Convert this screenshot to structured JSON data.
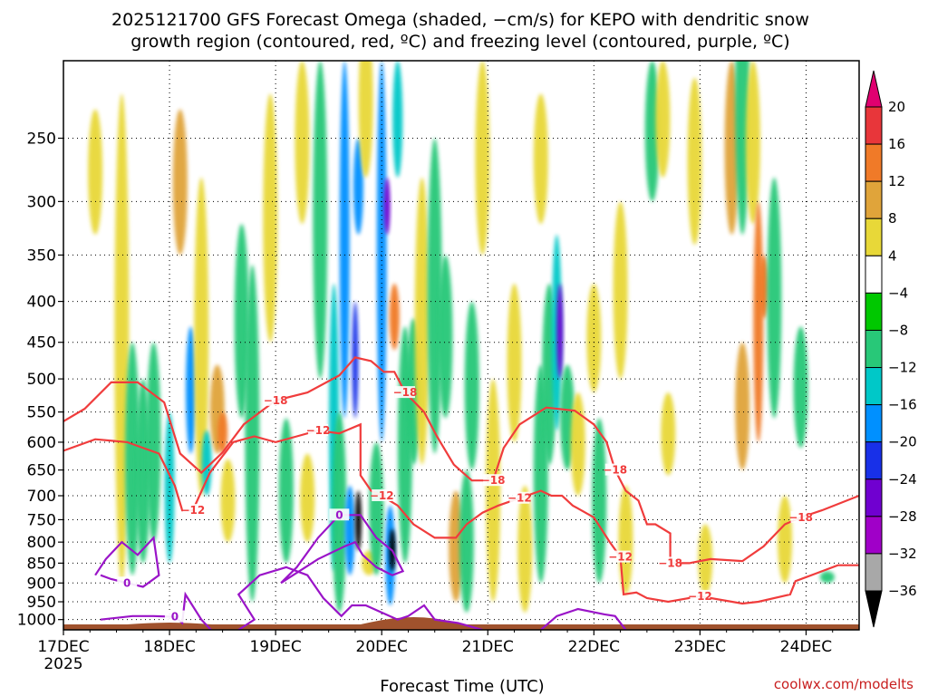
{
  "chart_data": {
    "type": "heatmap",
    "title_line1": "2025121700 GFS Forecast Omega (shaded, −cm/s) for KEPO with dendritic snow",
    "title_line2": "growth region (contoured, red, ºC) and freezing level (contoured, purple, ºC)",
    "xlabel": "Forecast Time (UTC)",
    "ylabel": "",
    "credit": "coolwx.com/modelts",
    "x_ticks": [
      "17DEC",
      "18DEC",
      "19DEC",
      "20DEC",
      "21DEC",
      "22DEC",
      "23DEC",
      "24DEC"
    ],
    "x_year": "2025",
    "x_range_days": [
      0,
      7.5
    ],
    "y_ticks": [
      250,
      300,
      350,
      400,
      450,
      500,
      550,
      600,
      650,
      700,
      750,
      800,
      850,
      900,
      950,
      1000
    ],
    "y_range_hpa": [
      1030,
      200
    ],
    "colorbar": {
      "labels": [
        20,
        16,
        12,
        8,
        4,
        -4,
        -8,
        -12,
        -16,
        -20,
        -24,
        -28,
        -32,
        -36
      ],
      "colors": [
        "#e00070",
        "#e8363a",
        "#f07a28",
        "#e0a43a",
        "#e8d838",
        "#ffffff",
        "#00c800",
        "#28c878",
        "#00c8c8",
        "#0090ff",
        "#1830e8",
        "#7000d0",
        "#a000c8",
        "#a8a8a8",
        "#000000"
      ]
    },
    "omega_features": [
      {
        "day": 0.3,
        "p_top": 230,
        "p_bot": 330,
        "value": 6
      },
      {
        "day": 0.55,
        "p_top": 220,
        "p_bot": 900,
        "value": 5
      },
      {
        "day": 0.65,
        "p_top": 450,
        "p_bot": 880,
        "value": -9
      },
      {
        "day": 0.75,
        "p_top": 500,
        "p_bot": 850,
        "value": -11
      },
      {
        "day": 0.85,
        "p_top": 450,
        "p_bot": 800,
        "value": -10
      },
      {
        "day": 1.0,
        "p_top": 550,
        "p_bot": 850,
        "value": -13
      },
      {
        "day": 1.1,
        "p_top": 230,
        "p_bot": 350,
        "value": 10
      },
      {
        "day": 1.2,
        "p_top": 430,
        "p_bot": 620,
        "value": -17
      },
      {
        "day": 1.3,
        "p_top": 280,
        "p_bot": 700,
        "value": 6
      },
      {
        "day": 1.35,
        "p_top": 580,
        "p_bot": 700,
        "value": -13
      },
      {
        "day": 1.45,
        "p_top": 480,
        "p_bot": 620,
        "value": 9
      },
      {
        "day": 1.5,
        "p_top": 550,
        "p_bot": 620,
        "value": 13
      },
      {
        "day": 1.55,
        "p_top": 630,
        "p_bot": 800,
        "value": 7
      },
      {
        "day": 1.68,
        "p_top": 320,
        "p_bot": 560,
        "value": -8
      },
      {
        "day": 1.78,
        "p_top": 360,
        "p_bot": 950,
        "value": -10
      },
      {
        "day": 1.95,
        "p_top": 220,
        "p_bot": 450,
        "value": 7
      },
      {
        "day": 2.1,
        "p_top": 560,
        "p_bot": 850,
        "value": -10
      },
      {
        "day": 2.25,
        "p_top": 200,
        "p_bot": 320,
        "value": 6
      },
      {
        "day": 2.3,
        "p_top": 620,
        "p_bot": 800,
        "value": 5
      },
      {
        "day": 2.42,
        "p_top": 200,
        "p_bot": 500,
        "value": -9
      },
      {
        "day": 2.55,
        "p_top": 380,
        "p_bot": 870,
        "value": -12
      },
      {
        "day": 2.6,
        "p_top": 550,
        "p_bot": 980,
        "value": -9
      },
      {
        "day": 2.65,
        "p_top": 200,
        "p_bot": 560,
        "value": -16
      },
      {
        "day": 2.7,
        "p_top": 680,
        "p_bot": 880,
        "value": -19
      },
      {
        "day": 2.75,
        "p_top": 400,
        "p_bot": 560,
        "value": -22
      },
      {
        "day": 2.78,
        "p_top": 250,
        "p_bot": 330,
        "value": -18
      },
      {
        "day": 2.78,
        "p_top": 690,
        "p_bot": 820,
        "value": -37
      },
      {
        "day": 2.85,
        "p_top": 180,
        "p_bot": 280,
        "value": 6
      },
      {
        "day": 2.88,
        "p_top": 820,
        "p_bot": 880,
        "value": 7
      },
      {
        "day": 2.95,
        "p_top": 600,
        "p_bot": 880,
        "value": -10
      },
      {
        "day": 3.0,
        "p_top": 200,
        "p_bot": 600,
        "value": -17
      },
      {
        "day": 3.05,
        "p_top": 280,
        "p_bot": 330,
        "value": -26
      },
      {
        "day": 3.08,
        "p_top": 720,
        "p_bot": 960,
        "value": -17
      },
      {
        "day": 3.1,
        "p_top": 770,
        "p_bot": 870,
        "value": -37
      },
      {
        "day": 3.12,
        "p_top": 380,
        "p_bot": 460,
        "value": 13
      },
      {
        "day": 3.15,
        "p_top": 200,
        "p_bot": 280,
        "value": -14
      },
      {
        "day": 3.22,
        "p_top": 430,
        "p_bot": 850,
        "value": -10
      },
      {
        "day": 3.3,
        "p_top": 420,
        "p_bot": 640,
        "value": -8
      },
      {
        "day": 3.38,
        "p_top": 280,
        "p_bot": 640,
        "value": 6
      },
      {
        "day": 3.5,
        "p_top": 250,
        "p_bot": 620,
        "value": -10
      },
      {
        "day": 3.6,
        "p_top": 350,
        "p_bot": 560,
        "value": -9
      },
      {
        "day": 3.7,
        "p_top": 690,
        "p_bot": 950,
        "value": 8
      },
      {
        "day": 3.8,
        "p_top": 650,
        "p_bot": 980,
        "value": -9
      },
      {
        "day": 3.85,
        "p_top": 400,
        "p_bot": 650,
        "value": -8
      },
      {
        "day": 3.95,
        "p_top": 200,
        "p_bot": 350,
        "value": 6
      },
      {
        "day": 4.05,
        "p_top": 500,
        "p_bot": 950,
        "value": 6
      },
      {
        "day": 4.25,
        "p_top": 380,
        "p_bot": 600,
        "value": 6
      },
      {
        "day": 4.35,
        "p_top": 680,
        "p_bot": 980,
        "value": 6
      },
      {
        "day": 4.5,
        "p_top": 220,
        "p_bot": 320,
        "value": 6
      },
      {
        "day": 4.5,
        "p_top": 480,
        "p_bot": 900,
        "value": -9
      },
      {
        "day": 4.58,
        "p_top": 380,
        "p_bot": 640,
        "value": -10
      },
      {
        "day": 4.65,
        "p_top": 330,
        "p_bot": 580,
        "value": -14
      },
      {
        "day": 4.68,
        "p_top": 380,
        "p_bot": 500,
        "value": -24
      },
      {
        "day": 4.75,
        "p_top": 480,
        "p_bot": 650,
        "value": -9
      },
      {
        "day": 4.85,
        "p_top": 520,
        "p_bot": 700,
        "value": 5
      },
      {
        "day": 5.0,
        "p_top": 380,
        "p_bot": 520,
        "value": 6
      },
      {
        "day": 5.05,
        "p_top": 560,
        "p_bot": 900,
        "value": -8
      },
      {
        "day": 5.25,
        "p_top": 300,
        "p_bot": 500,
        "value": 5
      },
      {
        "day": 5.3,
        "p_top": 680,
        "p_bot": 930,
        "value": 6
      },
      {
        "day": 5.55,
        "p_top": 200,
        "p_bot": 300,
        "value": -8
      },
      {
        "day": 5.65,
        "p_top": 200,
        "p_bot": 280,
        "value": 6
      },
      {
        "day": 5.7,
        "p_top": 520,
        "p_bot": 660,
        "value": 5
      },
      {
        "day": 5.95,
        "p_top": 210,
        "p_bot": 340,
        "value": 5
      },
      {
        "day": 6.05,
        "p_top": 760,
        "p_bot": 930,
        "value": 6
      },
      {
        "day": 6.3,
        "p_top": 200,
        "p_bot": 330,
        "value": 10
      },
      {
        "day": 6.4,
        "p_top": 150,
        "p_bot": 330,
        "value": -9
      },
      {
        "day": 6.5,
        "p_top": 200,
        "p_bot": 320,
        "value": 6
      },
      {
        "day": 6.4,
        "p_top": 450,
        "p_bot": 650,
        "value": 10
      },
      {
        "day": 6.55,
        "p_top": 300,
        "p_bot": 600,
        "value": 12
      },
      {
        "day": 6.6,
        "p_top": 350,
        "p_bot": 420,
        "value": 14
      },
      {
        "day": 6.7,
        "p_top": 280,
        "p_bot": 560,
        "value": -8
      },
      {
        "day": 6.8,
        "p_top": 700,
        "p_bot": 900,
        "value": 6
      },
      {
        "day": 6.95,
        "p_top": 430,
        "p_bot": 610,
        "value": -9
      },
      {
        "day": 7.2,
        "p_top": 870,
        "p_bot": 900,
        "value": -9
      }
    ],
    "dgz_contours": [
      {
        "label": "-18",
        "points": [
          [
            0,
            565
          ],
          [
            0.2,
            545
          ],
          [
            0.45,
            505
          ],
          [
            0.7,
            505
          ],
          [
            0.95,
            535
          ],
          [
            1.1,
            620
          ],
          [
            1.3,
            655
          ],
          [
            1.5,
            618
          ],
          [
            1.7,
            570
          ],
          [
            2.0,
            532
          ],
          [
            2.3,
            520
          ],
          [
            2.6,
            495
          ],
          [
            2.75,
            470
          ],
          [
            2.9,
            475
          ],
          [
            3.02,
            490
          ],
          [
            3.12,
            490
          ],
          [
            3.22,
            520
          ],
          [
            3.4,
            550
          ],
          [
            3.52,
            590
          ],
          [
            3.68,
            640
          ],
          [
            3.85,
            670
          ],
          [
            4.05,
            670
          ],
          [
            4.15,
            610
          ],
          [
            4.3,
            570
          ],
          [
            4.55,
            543
          ],
          [
            4.82,
            548
          ],
          [
            5.0,
            570
          ],
          [
            5.12,
            600
          ],
          [
            5.2,
            650
          ],
          [
            5.3,
            690
          ],
          [
            5.42,
            710
          ],
          [
            5.5,
            760
          ],
          [
            5.58,
            760
          ],
          [
            5.72,
            780
          ],
          [
            5.72,
            850
          ],
          [
            5.9,
            850
          ],
          [
            6.1,
            840
          ],
          [
            6.4,
            845
          ],
          [
            6.6,
            810
          ],
          [
            6.8,
            760
          ],
          [
            6.95,
            745
          ],
          [
            7.15,
            730
          ],
          [
            7.5,
            700
          ]
        ]
      },
      {
        "label": "-12",
        "points": [
          [
            0,
            615
          ],
          [
            0.3,
            595
          ],
          [
            0.6,
            600
          ],
          [
            0.9,
            620
          ],
          [
            1.05,
            680
          ],
          [
            1.12,
            730
          ],
          [
            1.22,
            730
          ],
          [
            1.38,
            655
          ],
          [
            1.6,
            600
          ],
          [
            1.8,
            590
          ],
          [
            2.0,
            600
          ],
          [
            2.2,
            590
          ],
          [
            2.4,
            580
          ],
          [
            2.6,
            585
          ],
          [
            2.8,
            570
          ],
          [
            2.8,
            660
          ],
          [
            2.9,
            690
          ],
          [
            3.0,
            700
          ],
          [
            3.15,
            720
          ],
          [
            3.3,
            760
          ],
          [
            3.5,
            790
          ],
          [
            3.7,
            790
          ],
          [
            3.8,
            760
          ],
          [
            3.95,
            735
          ],
          [
            4.1,
            720
          ],
          [
            4.3,
            705
          ],
          [
            4.5,
            690
          ],
          [
            4.6,
            700
          ],
          [
            4.7,
            700
          ],
          [
            4.8,
            720
          ],
          [
            5.0,
            745
          ],
          [
            5.15,
            800
          ],
          [
            5.25,
            835
          ],
          [
            5.28,
            930
          ],
          [
            5.4,
            925
          ],
          [
            5.5,
            940
          ],
          [
            5.7,
            950
          ],
          [
            6.0,
            935
          ],
          [
            6.4,
            955
          ],
          [
            6.55,
            950
          ],
          [
            6.85,
            930
          ],
          [
            6.9,
            895
          ],
          [
            7.1,
            875
          ],
          [
            7.3,
            855
          ],
          [
            7.5,
            855
          ]
        ]
      }
    ],
    "freezing_contours": [
      {
        "label": "0",
        "points": [
          [
            0.35,
            1000
          ],
          [
            0.65,
            990
          ],
          [
            0.85,
            990
          ],
          [
            1.05,
            992
          ],
          [
            1.12,
            1010
          ],
          [
            1.15,
            930
          ],
          [
            1.3,
            1000
          ],
          [
            1.45,
            1050
          ],
          [
            1.65,
            1030
          ],
          [
            1.8,
            1000
          ],
          [
            1.65,
            930
          ],
          [
            1.85,
            880
          ],
          [
            2.1,
            860
          ],
          [
            2.3,
            880
          ],
          [
            2.45,
            940
          ],
          [
            2.62,
            990
          ],
          [
            2.72,
            960
          ],
          [
            2.85,
            960
          ],
          [
            3.0,
            980
          ],
          [
            3.15,
            1000
          ],
          [
            3.25,
            990
          ],
          [
            3.4,
            960
          ],
          [
            3.5,
            1000
          ],
          [
            3.72,
            1010
          ],
          [
            3.95,
            1030
          ]
        ]
      },
      {
        "label": "0",
        "points": [
          [
            0.3,
            880
          ],
          [
            0.4,
            840
          ],
          [
            0.55,
            800
          ],
          [
            0.7,
            830
          ],
          [
            0.85,
            790
          ],
          [
            0.9,
            880
          ],
          [
            0.75,
            910
          ],
          [
            0.6,
            900
          ],
          [
            0.45,
            890
          ],
          [
            0.35,
            880
          ]
        ]
      },
      {
        "label": "0",
        "points": [
          [
            2.05,
            900
          ],
          [
            2.4,
            840
          ],
          [
            2.65,
            810
          ],
          [
            2.75,
            800
          ],
          [
            2.82,
            830
          ],
          [
            2.95,
            860
          ],
          [
            3.1,
            880
          ],
          [
            3.2,
            870
          ],
          [
            3.1,
            820
          ],
          [
            2.95,
            790
          ],
          [
            2.8,
            740
          ],
          [
            2.6,
            740
          ],
          [
            2.4,
            790
          ],
          [
            2.2,
            860
          ],
          [
            2.05,
            900
          ]
        ]
      },
      {
        "label": "0",
        "points": [
          [
            4.5,
            1030
          ],
          [
            4.65,
            990
          ],
          [
            4.85,
            970
          ],
          [
            5.1,
            985
          ],
          [
            5.2,
            990
          ],
          [
            5.3,
            1030
          ]
        ]
      }
    ],
    "terrain_hpa": 1014
  }
}
